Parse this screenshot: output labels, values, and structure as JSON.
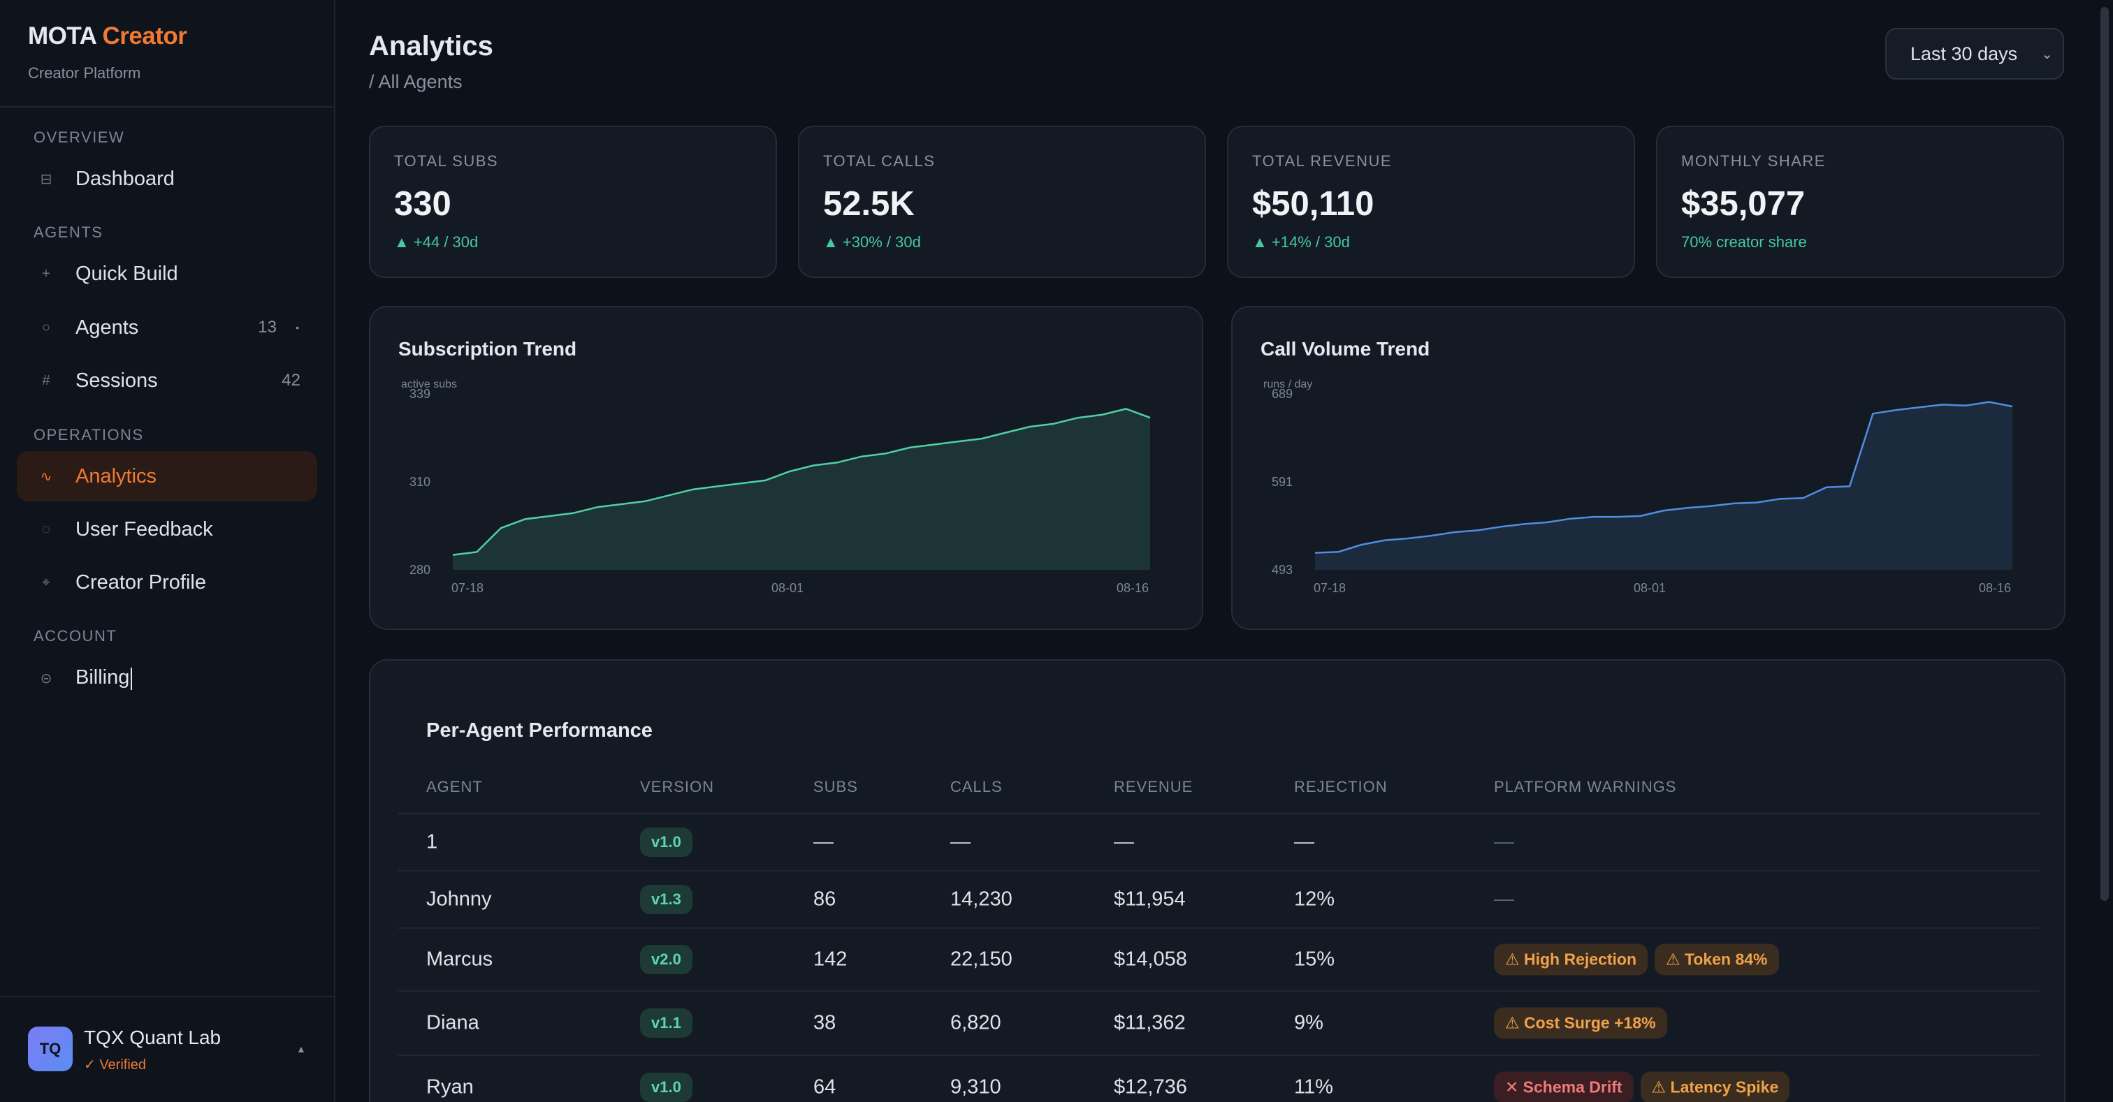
{
  "brand": {
    "name": "MOTA",
    "accent": "Creator",
    "subtitle": "Creator Platform"
  },
  "sidebar": {
    "sections": {
      "overview": "OVERVIEW",
      "agents": "AGENTS",
      "operations": "OPERATIONS",
      "account": "ACCOUNT"
    },
    "items": {
      "dashboard": {
        "label": "Dashboard",
        "icon": "grid-icon"
      },
      "quick_build": {
        "label": "Quick Build",
        "icon": "plus-icon"
      },
      "agents": {
        "label": "Agents",
        "count": "13",
        "icon": "circle-icon"
      },
      "sessions": {
        "label": "Sessions",
        "count": "42",
        "icon": "hash-icon"
      },
      "analytics": {
        "label": "Analytics",
        "icon": "trend-icon",
        "active": true
      },
      "user_feedback": {
        "label": "User Feedback",
        "icon": "feedback-icon"
      },
      "creator_profile": {
        "label": "Creator Profile",
        "icon": "profile-icon"
      },
      "billing": {
        "label": "Billing",
        "icon": "billing-icon"
      }
    },
    "footer": {
      "initials": "TQ",
      "org_name": "TQX Quant Lab",
      "status": "✓ Verified"
    }
  },
  "header": {
    "title": "Analytics",
    "breadcrumb": "/ All Agents",
    "range": "Last 30 days"
  },
  "kpis": [
    {
      "label": "TOTAL SUBS",
      "value": "330",
      "delta": "▲ +44 / 30d"
    },
    {
      "label": "TOTAL CALLS",
      "value": "52.5K",
      "delta": "▲ +30% / 30d"
    },
    {
      "label": "TOTAL REVENUE",
      "value": "$50,110",
      "delta": "▲ +14% / 30d"
    },
    {
      "label": "MONTHLY SHARE",
      "value": "$35,077",
      "delta": "70% creator share"
    }
  ],
  "chart_data": [
    {
      "type": "area",
      "title": "Subscription Trend",
      "ylabel": "active subs",
      "ylim": [
        280,
        339
      ],
      "yticks": [
        "339",
        "310",
        "280"
      ],
      "xticks": [
        "07-18",
        "08-01",
        "08-16"
      ],
      "color": "#4fd1a5",
      "values": [
        285,
        286,
        294,
        297,
        298,
        299,
        301,
        302,
        303,
        305,
        307,
        308,
        309,
        310,
        313,
        315,
        316,
        318,
        319,
        321,
        322,
        323,
        324,
        326,
        328,
        329,
        331,
        332,
        334,
        331
      ]
    },
    {
      "type": "area",
      "title": "Call Volume Trend",
      "ylabel": "runs / day",
      "ylim": [
        493,
        689
      ],
      "yticks": [
        "689",
        "591",
        "493"
      ],
      "xticks": [
        "07-18",
        "08-01",
        "08-16"
      ],
      "color": "#4f8fe0",
      "values": [
        512,
        513,
        521,
        526,
        528,
        531,
        535,
        537,
        541,
        544,
        546,
        550,
        552,
        552,
        553,
        559,
        562,
        564,
        567,
        568,
        572,
        573,
        585,
        586,
        667,
        671,
        674,
        677,
        676,
        680,
        675
      ]
    }
  ],
  "table": {
    "title": "Per-Agent Performance",
    "headers": [
      "AGENT",
      "VERSION",
      "SUBS",
      "CALLS",
      "REVENUE",
      "REJECTION",
      "PLATFORM WARNINGS"
    ],
    "rows": [
      {
        "agent": "1",
        "version": "v1.0",
        "subs": "—",
        "calls": "—",
        "revenue": "—",
        "rejection": "—",
        "warnings": [],
        "none": "—"
      },
      {
        "agent": "Johnny",
        "version": "v1.3",
        "subs": "86",
        "calls": "14,230",
        "revenue": "$11,954",
        "rejection": "12%",
        "warnings": [],
        "none": "—"
      },
      {
        "agent": "Marcus",
        "version": "v2.0",
        "subs": "142",
        "calls": "22,150",
        "revenue": "$14,058",
        "rejection": "15%",
        "warnings": [
          {
            "text": "⚠ High Rejection",
            "level": "amber"
          },
          {
            "text": "⚠ Token 84%",
            "level": "amber"
          }
        ]
      },
      {
        "agent": "Diana",
        "version": "v1.1",
        "subs": "38",
        "calls": "6,820",
        "revenue": "$11,362",
        "rejection": "9%",
        "warnings": [
          {
            "text": "⚠ Cost Surge +18%",
            "level": "amber"
          }
        ]
      },
      {
        "agent": "Ryan",
        "version": "v1.0",
        "subs": "64",
        "calls": "9,310",
        "revenue": "$12,736",
        "rejection": "11%",
        "warnings": [
          {
            "text": "✕ Schema Drift",
            "level": "red"
          },
          {
            "text": "⚠ Latency Spike",
            "level": "amber"
          }
        ]
      }
    ]
  }
}
